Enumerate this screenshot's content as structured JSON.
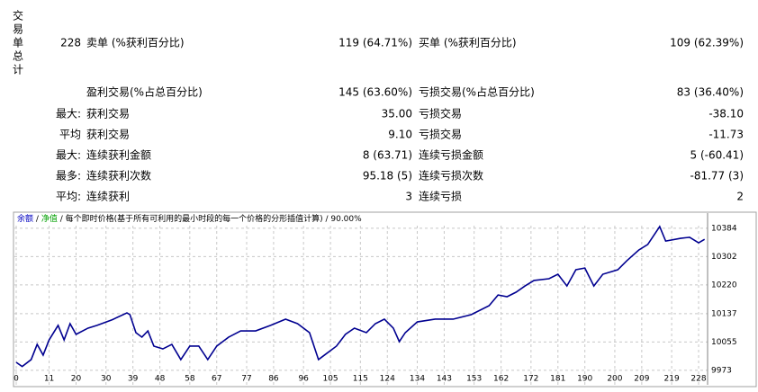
{
  "side_label": [
    "交",
    "易",
    "单",
    "总",
    "计"
  ],
  "stats": [
    {
      "lead": "228",
      "label1": "卖单 (%获利百分比)",
      "value1": "119 (64.71%)",
      "label2": "买单 (%获利百分比)",
      "value2": "109 (62.39%)"
    },
    {
      "label1": "盈利交易(%占总百分比)",
      "value1": "145 (63.60%)",
      "label2": "亏损交易(%占总百分比)",
      "value2": "83 (36.40%)"
    },
    {
      "lead": "最大:",
      "label1": "获利交易",
      "value1": "35.00",
      "label2": "亏损交易",
      "value2": "-38.10"
    },
    {
      "lead": "平均",
      "label1": "获利交易",
      "value1": "9.10",
      "label2": "亏损交易",
      "value2": "-11.73"
    },
    {
      "lead": "最大:",
      "label1": "连续获利金额",
      "value1": "8 (63.71)",
      "label2": "连续亏损金额",
      "value2": "5 (-60.41)"
    },
    {
      "lead": "最多:",
      "label1": "连续获利次数",
      "value1": "95.18 (5)",
      "label2": "连续亏损次数",
      "value2": "-81.77 (3)"
    },
    {
      "lead": "平均:",
      "label1": "连续获利",
      "value1": "3",
      "label2": "连续亏损",
      "value2": "2"
    }
  ],
  "chart_data": {
    "type": "line",
    "legend": [
      {
        "text": "余额",
        "color": "#0000c0"
      },
      {
        "text": "/",
        "color": "#000000"
      },
      {
        "text": "净值",
        "color": "#00a000"
      },
      {
        "text": "/ 每个即时价格(基于所有可利用的最小时段的每一个价格的分形插值计算) / 90.00%",
        "color": "#000000"
      }
    ],
    "x": [
      0,
      2,
      5,
      7,
      9,
      11,
      14,
      16,
      18,
      20,
      24,
      27,
      32,
      37,
      38,
      40,
      42,
      44,
      46,
      49,
      52,
      55,
      58,
      61,
      64,
      67,
      71,
      75,
      80,
      85,
      90,
      94,
      98,
      101,
      103,
      107,
      110,
      113,
      117,
      120,
      123,
      126,
      128,
      130,
      134,
      140,
      146,
      152,
      158,
      161,
      164,
      167,
      170,
      173,
      178,
      181,
      184,
      187,
      190,
      193,
      196,
      201,
      204,
      208,
      211,
      215,
      217,
      222,
      225,
      228,
      230
    ],
    "series": [
      {
        "name": "余额",
        "color": "#000090",
        "values": [
          9996,
          9984,
          10004,
          10048,
          10017,
          10061,
          10103,
          10061,
          10108,
          10077,
          10095,
          10103,
          10119,
          10139,
          10134,
          10082,
          10069,
          10087,
          10043,
          10035,
          10048,
          10004,
          10043,
          10043,
          10004,
          10043,
          10069,
          10087,
          10087,
          10103,
          10121,
          10108,
          10082,
          10004,
          10017,
          10043,
          10077,
          10095,
          10082,
          10108,
          10121,
          10095,
          10056,
          10082,
          10113,
          10121,
          10121,
          10134,
          10160,
          10191,
          10186,
          10199,
          10217,
          10233,
          10238,
          10251,
          10217,
          10264,
          10269,
          10217,
          10251,
          10264,
          10290,
          10321,
          10337,
          10389,
          10347,
          10355,
          10358,
          10342,
          10352
        ]
      }
    ],
    "xlim": [
      -0.6,
      231
    ],
    "ylim": [
      9931,
      10428
    ],
    "xticks": [
      0,
      11,
      20,
      30,
      39,
      48,
      58,
      67,
      77,
      86,
      96,
      105,
      115,
      124,
      134,
      143,
      153,
      162,
      172,
      181,
      190,
      200,
      209,
      219,
      228
    ],
    "yticks": [
      9973,
      10055,
      10137,
      10220,
      10302,
      10384
    ],
    "grid": true
  }
}
